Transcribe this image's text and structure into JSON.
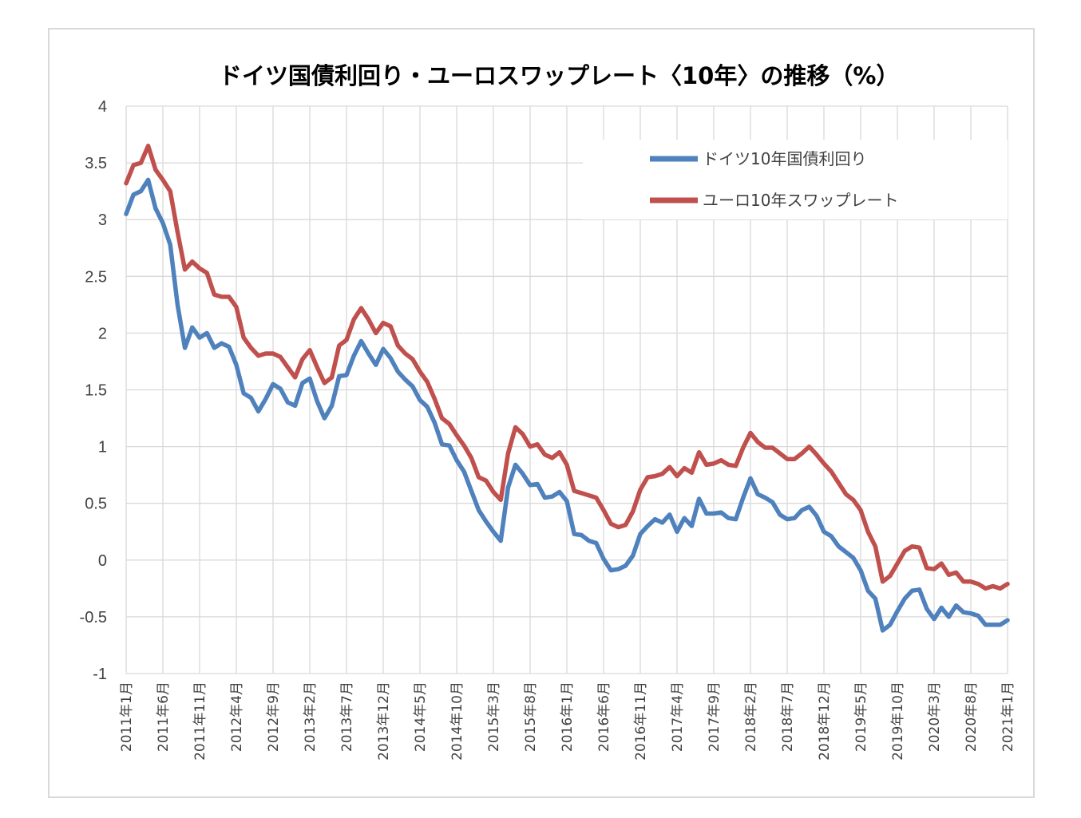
{
  "chart_data": {
    "type": "line",
    "title": "ドイツ国債利回り・ユーロスワップレート〈10年〉の推移（%）",
    "xlabel": "",
    "ylabel": "",
    "ylim": [
      -1,
      4
    ],
    "yticks": [
      "4",
      "3.5",
      "3",
      "2.5",
      "2",
      "1.5",
      "1",
      "0.5",
      "0",
      "-0.5",
      "-1"
    ],
    "x_start": "2011年1月",
    "x_end": "2021年1月",
    "x_tick_labels": [
      "2011年1月",
      "2011年6月",
      "2011年11月",
      "2012年4月",
      "2012年9月",
      "2013年2月",
      "2013年7月",
      "2013年12月",
      "2014年5月",
      "2014年10月",
      "2015年3月",
      "2015年8月",
      "2016年1月",
      "2016年6月",
      "2016年11月",
      "2017年4月",
      "2017年9月",
      "2018年2月",
      "2018年7月",
      "2018年12月",
      "2019年5月",
      "2019年10月",
      "2020年3月",
      "2020年8月",
      "2021年1月"
    ],
    "grid": true,
    "legend_position": "top-right",
    "series": [
      {
        "name": "ドイツ10年国債利回り",
        "color": "#4f81bd",
        "values": [
          3.05,
          3.22,
          3.25,
          3.35,
          3.1,
          2.97,
          2.78,
          2.25,
          1.87,
          2.05,
          1.96,
          2.0,
          1.87,
          1.91,
          1.88,
          1.72,
          1.47,
          1.43,
          1.31,
          1.42,
          1.55,
          1.51,
          1.39,
          1.36,
          1.56,
          1.6,
          1.4,
          1.25,
          1.36,
          1.62,
          1.63,
          1.8,
          1.93,
          1.82,
          1.72,
          1.86,
          1.78,
          1.66,
          1.59,
          1.53,
          1.41,
          1.35,
          1.21,
          1.02,
          1.01,
          0.88,
          0.78,
          0.61,
          0.44,
          0.34,
          0.25,
          0.17,
          0.64,
          0.84,
          0.76,
          0.66,
          0.67,
          0.55,
          0.56,
          0.6,
          0.52,
          0.23,
          0.22,
          0.17,
          0.15,
          0.01,
          -0.09,
          -0.08,
          -0.05,
          0.04,
          0.23,
          0.3,
          0.36,
          0.33,
          0.4,
          0.25,
          0.37,
          0.3,
          0.54,
          0.41,
          0.41,
          0.42,
          0.37,
          0.36,
          0.55,
          0.72,
          0.58,
          0.55,
          0.51,
          0.4,
          0.36,
          0.37,
          0.44,
          0.47,
          0.39,
          0.25,
          0.21,
          0.12,
          0.07,
          0.02,
          -0.09,
          -0.27,
          -0.34,
          -0.62,
          -0.57,
          -0.45,
          -0.34,
          -0.27,
          -0.26,
          -0.43,
          -0.52,
          -0.42,
          -0.5,
          -0.4,
          -0.46,
          -0.47,
          -0.49,
          -0.57,
          -0.57,
          -0.57,
          -0.53
        ]
      },
      {
        "name": "ユーロ10年スワップレート",
        "color": "#c0504d",
        "values": [
          3.32,
          3.48,
          3.5,
          3.65,
          3.44,
          3.35,
          3.25,
          2.89,
          2.56,
          2.63,
          2.57,
          2.53,
          2.34,
          2.32,
          2.32,
          2.23,
          1.96,
          1.87,
          1.8,
          1.82,
          1.82,
          1.79,
          1.7,
          1.61,
          1.77,
          1.85,
          1.7,
          1.56,
          1.61,
          1.89,
          1.94,
          2.12,
          2.22,
          2.12,
          2.0,
          2.09,
          2.06,
          1.89,
          1.82,
          1.77,
          1.66,
          1.57,
          1.42,
          1.25,
          1.2,
          1.1,
          1.01,
          0.9,
          0.73,
          0.7,
          0.6,
          0.53,
          0.94,
          1.17,
          1.11,
          1.0,
          1.02,
          0.93,
          0.9,
          0.95,
          0.84,
          0.61,
          0.59,
          0.57,
          0.55,
          0.44,
          0.32,
          0.29,
          0.31,
          0.43,
          0.62,
          0.73,
          0.74,
          0.76,
          0.82,
          0.74,
          0.81,
          0.77,
          0.95,
          0.84,
          0.85,
          0.88,
          0.84,
          0.83,
          0.99,
          1.12,
          1.04,
          0.99,
          0.99,
          0.94,
          0.89,
          0.89,
          0.94,
          1.0,
          0.93,
          0.85,
          0.78,
          0.68,
          0.58,
          0.53,
          0.44,
          0.25,
          0.12,
          -0.19,
          -0.14,
          -0.03,
          0.08,
          0.12,
          0.11,
          -0.07,
          -0.08,
          -0.03,
          -0.13,
          -0.11,
          -0.19,
          -0.19,
          -0.21,
          -0.25,
          -0.23,
          -0.25,
          -0.21
        ]
      }
    ]
  }
}
